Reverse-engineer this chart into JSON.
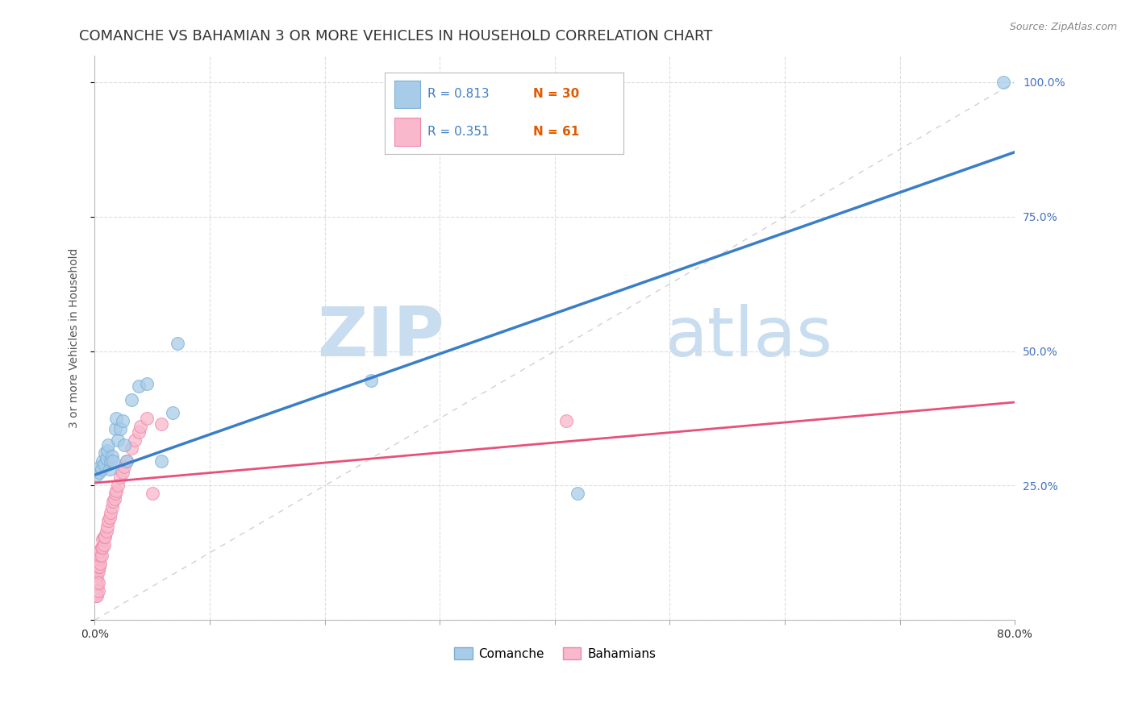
{
  "title": "COMANCHE VS BAHAMIAN 3 OR MORE VEHICLES IN HOUSEHOLD CORRELATION CHART",
  "source": "Source: ZipAtlas.com",
  "ylabel": "3 or more Vehicles in Household",
  "xlim": [
    0.0,
    0.8
  ],
  "ylim": [
    0.0,
    1.05
  ],
  "comanche_R": 0.813,
  "comanche_N": 30,
  "bahamian_R": 0.351,
  "bahamian_N": 61,
  "comanche_color": "#a8cce8",
  "bahamian_color": "#f9b8cb",
  "comanche_edge_color": "#7aafd4",
  "bahamian_edge_color": "#f086a8",
  "comanche_line_color": "#3a7ec8",
  "bahamian_line_color": "#e8507a",
  "diagonal_color": "#cccccc",
  "legend_R_color": "#3a7ec8",
  "legend_N_color": "#e05a00",
  "watermark_color": "#ddeeff",
  "legend_label_1": "Comanche",
  "legend_label_2": "Bahamians",
  "comanche_x": [
    0.002,
    0.004,
    0.005,
    0.006,
    0.007,
    0.008,
    0.009,
    0.01,
    0.011,
    0.012,
    0.013,
    0.014,
    0.015,
    0.016,
    0.018,
    0.019,
    0.02,
    0.022,
    0.024,
    0.026,
    0.028,
    0.032,
    0.038,
    0.045,
    0.058,
    0.068,
    0.072,
    0.24,
    0.42,
    0.79
  ],
  "comanche_y": [
    0.27,
    0.275,
    0.285,
    0.28,
    0.295,
    0.29,
    0.31,
    0.3,
    0.315,
    0.325,
    0.28,
    0.295,
    0.305,
    0.295,
    0.355,
    0.375,
    0.335,
    0.355,
    0.37,
    0.325,
    0.295,
    0.41,
    0.435,
    0.44,
    0.295,
    0.385,
    0.515,
    0.445,
    0.235,
    1.0
  ],
  "bahamian_x": [
    0.0005,
    0.0005,
    0.0005,
    0.001,
    0.001,
    0.001,
    0.001,
    0.001,
    0.001,
    0.001,
    0.001,
    0.001,
    0.0015,
    0.0015,
    0.002,
    0.002,
    0.002,
    0.002,
    0.002,
    0.002,
    0.002,
    0.002,
    0.003,
    0.003,
    0.003,
    0.003,
    0.004,
    0.004,
    0.005,
    0.005,
    0.005,
    0.006,
    0.006,
    0.007,
    0.007,
    0.008,
    0.008,
    0.009,
    0.01,
    0.011,
    0.012,
    0.013,
    0.014,
    0.015,
    0.016,
    0.017,
    0.018,
    0.019,
    0.02,
    0.022,
    0.024,
    0.026,
    0.028,
    0.032,
    0.035,
    0.038,
    0.04,
    0.045,
    0.05,
    0.058,
    0.41
  ],
  "bahamian_y": [
    0.05,
    0.06,
    0.07,
    0.045,
    0.055,
    0.065,
    0.075,
    0.05,
    0.06,
    0.07,
    0.08,
    0.09,
    0.07,
    0.08,
    0.065,
    0.075,
    0.085,
    0.095,
    0.055,
    0.065,
    0.1,
    0.045,
    0.09,
    0.1,
    0.055,
    0.07,
    0.1,
    0.115,
    0.105,
    0.12,
    0.13,
    0.12,
    0.135,
    0.135,
    0.15,
    0.14,
    0.155,
    0.155,
    0.165,
    0.175,
    0.185,
    0.19,
    0.2,
    0.21,
    0.22,
    0.225,
    0.235,
    0.24,
    0.25,
    0.265,
    0.275,
    0.285,
    0.295,
    0.32,
    0.335,
    0.35,
    0.36,
    0.375,
    0.235,
    0.365,
    0.37
  ],
  "background_color": "#ffffff",
  "grid_color": "#dddddd",
  "title_fontsize": 13,
  "axis_label_fontsize": 10,
  "tick_fontsize": 10,
  "comanche_line_x0": 0.0,
  "comanche_line_y0": 0.27,
  "comanche_line_x1": 0.8,
  "comanche_line_y1": 0.87,
  "bahamian_line_x0": 0.0,
  "bahamian_line_y0": 0.255,
  "bahamian_line_x1": 0.8,
  "bahamian_line_y1": 0.405
}
